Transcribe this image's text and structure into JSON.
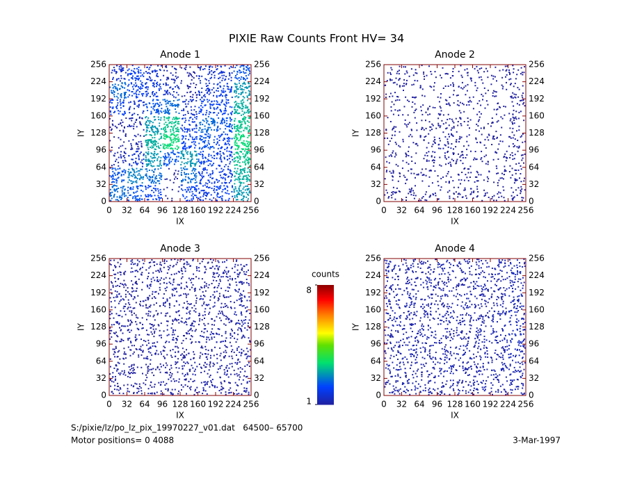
{
  "title": "PIXIE Raw Counts Front HV= 34",
  "chart_data": [
    {
      "type": "heatmap",
      "title": "Anode 1",
      "xlabel": "IX",
      "ylabel": "IY",
      "xlim": [
        0,
        256
      ],
      "ylim": [
        0,
        256
      ],
      "xticks": [
        0,
        32,
        64,
        96,
        128,
        160,
        192,
        224,
        256
      ],
      "yticks": [
        0,
        32,
        64,
        96,
        128,
        160,
        192,
        224,
        256
      ],
      "z": [
        [
          1.5,
          2.0,
          1.6,
          1.2,
          0.9,
          1.5,
          1.6,
          2.2
        ],
        [
          2.4,
          2.0,
          1.8,
          1.5,
          1.0,
          1.6,
          1.9,
          2.8
        ],
        [
          2.0,
          1.5,
          2.2,
          2.4,
          1.5,
          2.0,
          2.0,
          3.0
        ],
        [
          1.0,
          1.2,
          2.8,
          3.2,
          1.8,
          2.4,
          2.2,
          3.2
        ],
        [
          0.6,
          1.2,
          3.0,
          3.4,
          2.0,
          2.2,
          2.0,
          3.4
        ],
        [
          1.2,
          1.6,
          2.8,
          2.2,
          2.8,
          2.0,
          1.8,
          3.2
        ],
        [
          2.2,
          2.6,
          2.4,
          0.6,
          2.4,
          1.8,
          1.8,
          3.0
        ],
        [
          2.4,
          2.2,
          2.0,
          0.4,
          2.0,
          1.8,
          2.0,
          2.8
        ]
      ]
    },
    {
      "type": "heatmap",
      "title": "Anode 2",
      "xlabel": "IX",
      "ylabel": "IY",
      "xlim": [
        0,
        256
      ],
      "ylim": [
        0,
        256
      ],
      "xticks": [
        0,
        32,
        64,
        96,
        128,
        160,
        192,
        224,
        256
      ],
      "yticks": [
        0,
        32,
        64,
        96,
        128,
        160,
        192,
        224,
        256
      ],
      "z": [
        [
          0.8,
          0.7,
          0.5,
          0.5,
          0.6,
          0.6,
          0.7,
          0.8
        ],
        [
          0.7,
          0.6,
          0.5,
          0.6,
          0.6,
          0.5,
          0.6,
          0.9
        ],
        [
          0.6,
          0.5,
          0.6,
          0.8,
          0.7,
          0.5,
          0.5,
          0.8
        ],
        [
          0.5,
          0.5,
          0.7,
          1.0,
          0.7,
          0.5,
          0.5,
          0.9
        ],
        [
          0.5,
          0.5,
          0.8,
          1.1,
          0.7,
          0.6,
          0.6,
          0.9
        ],
        [
          0.6,
          0.6,
          0.8,
          0.9,
          0.8,
          0.7,
          0.7,
          0.8
        ],
        [
          0.7,
          0.7,
          0.7,
          0.6,
          0.8,
          0.7,
          0.7,
          0.9
        ],
        [
          0.8,
          0.8,
          0.7,
          0.6,
          0.8,
          0.7,
          0.7,
          0.9
        ]
      ]
    },
    {
      "type": "heatmap",
      "title": "Anode 3",
      "xlabel": "IX",
      "ylabel": "IY",
      "xlim": [
        0,
        256
      ],
      "ylim": [
        0,
        256
      ],
      "xticks": [
        0,
        32,
        64,
        96,
        128,
        160,
        192,
        224,
        256
      ],
      "yticks": [
        0,
        32,
        64,
        96,
        128,
        160,
        192,
        224,
        256
      ],
      "z": [
        [
          1.0,
          1.1,
          1.0,
          1.0,
          1.1,
          1.0,
          1.1,
          1.1
        ],
        [
          1.0,
          1.0,
          1.1,
          1.1,
          1.0,
          1.0,
          1.1,
          1.1
        ],
        [
          1.1,
          1.0,
          1.0,
          1.1,
          1.0,
          1.1,
          1.0,
          1.1
        ],
        [
          1.1,
          1.0,
          1.0,
          1.0,
          1.1,
          1.0,
          1.0,
          1.2
        ],
        [
          1.0,
          1.1,
          1.0,
          1.1,
          1.0,
          1.1,
          1.1,
          1.1
        ],
        [
          1.0,
          1.0,
          1.1,
          1.0,
          1.0,
          1.0,
          1.0,
          1.1
        ],
        [
          1.1,
          1.0,
          1.0,
          1.0,
          1.1,
          1.0,
          1.1,
          1.0
        ],
        [
          1.0,
          1.0,
          1.0,
          1.1,
          1.0,
          1.1,
          1.0,
          1.1
        ]
      ]
    },
    {
      "type": "heatmap",
      "title": "Anode 4",
      "xlabel": "IX",
      "ylabel": "IY",
      "xlim": [
        0,
        256
      ],
      "ylim": [
        0,
        256
      ],
      "xticks": [
        0,
        32,
        64,
        96,
        128,
        160,
        192,
        224,
        256
      ],
      "yticks": [
        0,
        32,
        64,
        96,
        128,
        160,
        192,
        224,
        256
      ],
      "z": [
        [
          1.2,
          1.1,
          1.1,
          1.2,
          1.1,
          1.1,
          1.2,
          1.3
        ],
        [
          1.1,
          1.1,
          1.2,
          1.1,
          1.1,
          1.2,
          1.1,
          1.2
        ],
        [
          1.1,
          1.2,
          1.1,
          1.1,
          1.2,
          1.1,
          1.1,
          1.3
        ],
        [
          1.2,
          1.1,
          1.1,
          1.2,
          1.1,
          1.1,
          1.2,
          1.3
        ],
        [
          1.1,
          1.1,
          1.2,
          1.1,
          1.1,
          1.2,
          1.2,
          1.4
        ],
        [
          1.1,
          1.2,
          1.1,
          1.1,
          1.2,
          1.1,
          1.1,
          1.3
        ],
        [
          1.2,
          1.1,
          1.1,
          1.2,
          1.1,
          1.1,
          1.2,
          1.2
        ],
        [
          1.1,
          1.2,
          1.1,
          1.1,
          1.1,
          1.2,
          1.1,
          1.2
        ]
      ]
    }
  ],
  "colorbar": {
    "label": "counts",
    "zlim": [
      1,
      8
    ],
    "ticks": [
      1,
      8
    ]
  },
  "footer": {
    "file": "S:/pixie/lz/po_lz_pix_19970227_v01.dat   64500– 65700",
    "motor": "Motor positions= 0 4088",
    "date": "3-Mar-1997"
  }
}
